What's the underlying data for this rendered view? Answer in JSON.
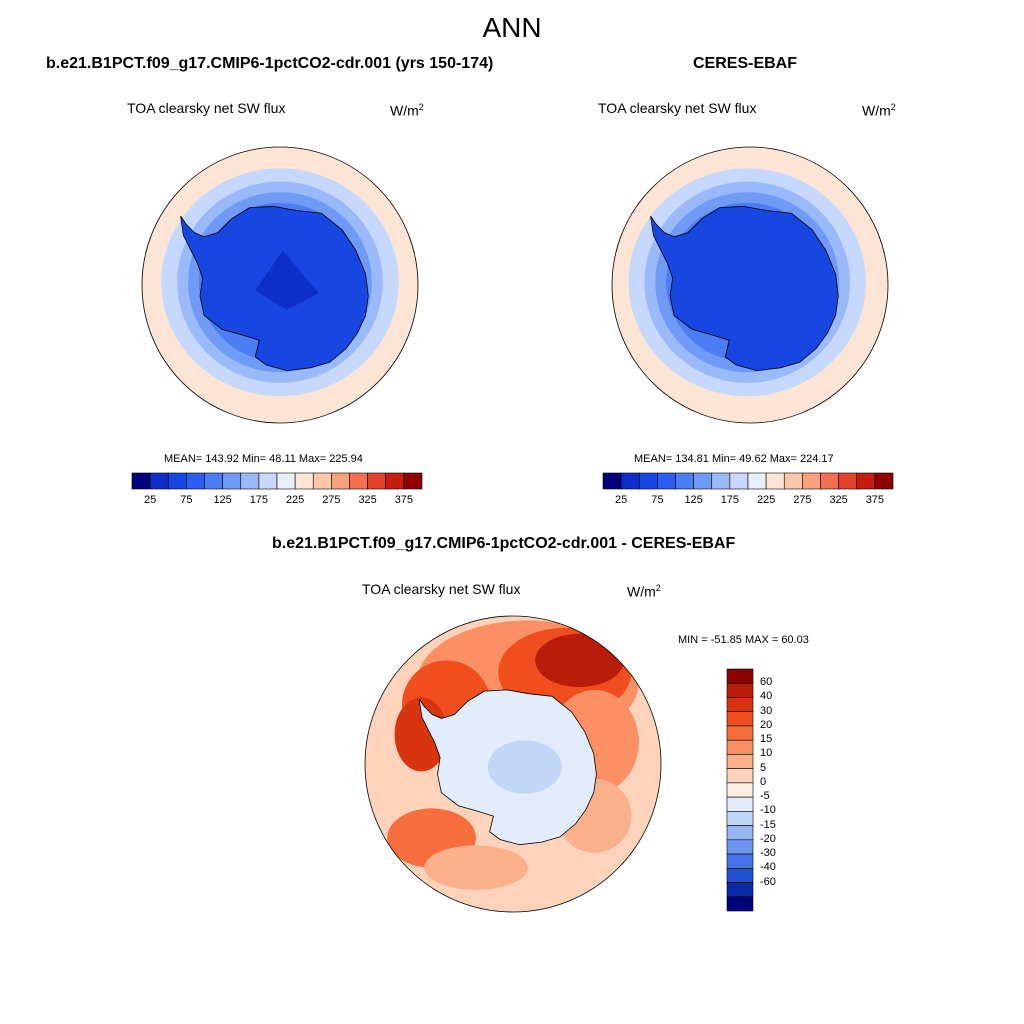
{
  "main_title": "ANN",
  "panels": [
    {
      "title": "b.e21.B1PCT.f09_g17.CMIP6-1pctCO2-cdr.001 (yrs 150-174)",
      "variable": "TOA clearsky net SW flux",
      "units": "W/m",
      "units_sup": "2",
      "stats": {
        "mean": "143.92",
        "min": "48.11",
        "max": "225.94"
      },
      "stats_text": "MEAN= 143.92  Min=  48.11  Max= 225.94"
    },
    {
      "title": "CERES-EBAF",
      "variable": "TOA clearsky net SW flux",
      "units": "W/m",
      "units_sup": "2",
      "stats": {
        "mean": "134.81",
        "min": "49.62",
        "max": "224.17"
      },
      "stats_text": "MEAN= 134.81  Min=  49.62  Max= 224.17"
    },
    {
      "title": "b.e21.B1PCT.f09_g17.CMIP6-1pctCO2-cdr.001 - CERES-EBAF",
      "variable": "TOA clearsky net SW flux",
      "units": "W/m",
      "units_sup": "2",
      "stats": {
        "min": "-51.85",
        "max": "60.03"
      },
      "stats_text": "MIN = -51.85 MAX =  60.03"
    }
  ],
  "colorbar_abs": {
    "tick_labels": [
      "25",
      "75",
      "125",
      "175",
      "225",
      "275",
      "325",
      "375"
    ],
    "colors": [
      "#00007f",
      "#0d2fc8",
      "#1747e0",
      "#2c5ff0",
      "#4b7ef5",
      "#6f9bf7",
      "#9ab9f9",
      "#c6d8fb",
      "#e8f0fd",
      "#fde5d6",
      "#fcc6a8",
      "#f9a07c",
      "#f26f4f",
      "#e2412a",
      "#c41e10",
      "#8f0000"
    ]
  },
  "colorbar_diff": {
    "tick_labels": [
      "60",
      "40",
      "30",
      "20",
      "15",
      "10",
      "5",
      "0",
      "-5",
      "-10",
      "-15",
      "-20",
      "-30",
      "-40",
      "-60"
    ],
    "colors": [
      "#8b0000",
      "#b81c0a",
      "#d93410",
      "#f04e1e",
      "#f76e3e",
      "#fa9063",
      "#fbb08c",
      "#fdd3bb",
      "#fdeee4",
      "#e2ecfb",
      "#c2d6f8",
      "#98b8f5",
      "#6e96f0",
      "#4673ea",
      "#2450d6",
      "#0b2aa8",
      "#00007a"
    ]
  },
  "map_colors": {
    "ocean_far": "#fde5d6",
    "ring1": "#c6d8fb",
    "ring2": "#9ab9f9",
    "ring3": "#6f9bf7",
    "ring4": "#4b7ef5",
    "ice": "#1747e0",
    "ice_core": "#0d2fc8",
    "coast": "#000000"
  }
}
